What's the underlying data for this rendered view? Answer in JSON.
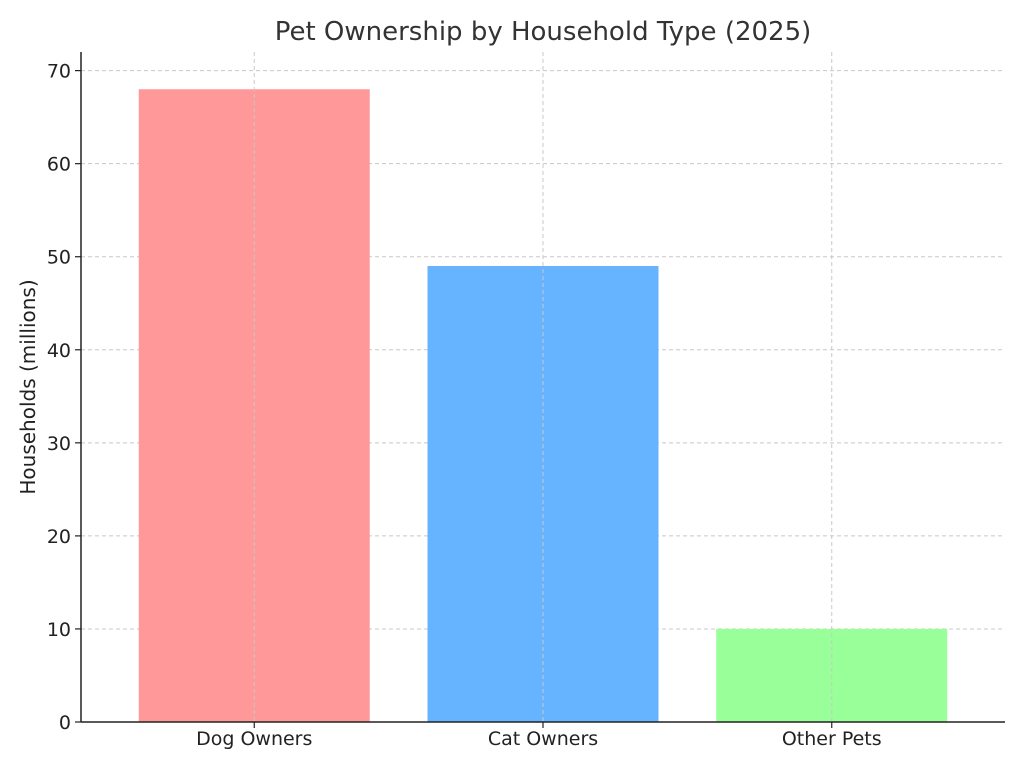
{
  "chart_data": {
    "type": "bar",
    "title": "Pet Ownership by Household Type (2025)",
    "xlabel": "",
    "ylabel": "Households (millions)",
    "categories": [
      "Dog Owners",
      "Cat Owners",
      "Other Pets"
    ],
    "values": [
      68,
      49,
      10
    ],
    "colors": [
      "#ff9999",
      "#66b3ff",
      "#99ff99"
    ],
    "ylim": [
      0,
      72
    ],
    "yticks": [
      0,
      10,
      20,
      30,
      40,
      50,
      60,
      70
    ],
    "grid": true
  }
}
